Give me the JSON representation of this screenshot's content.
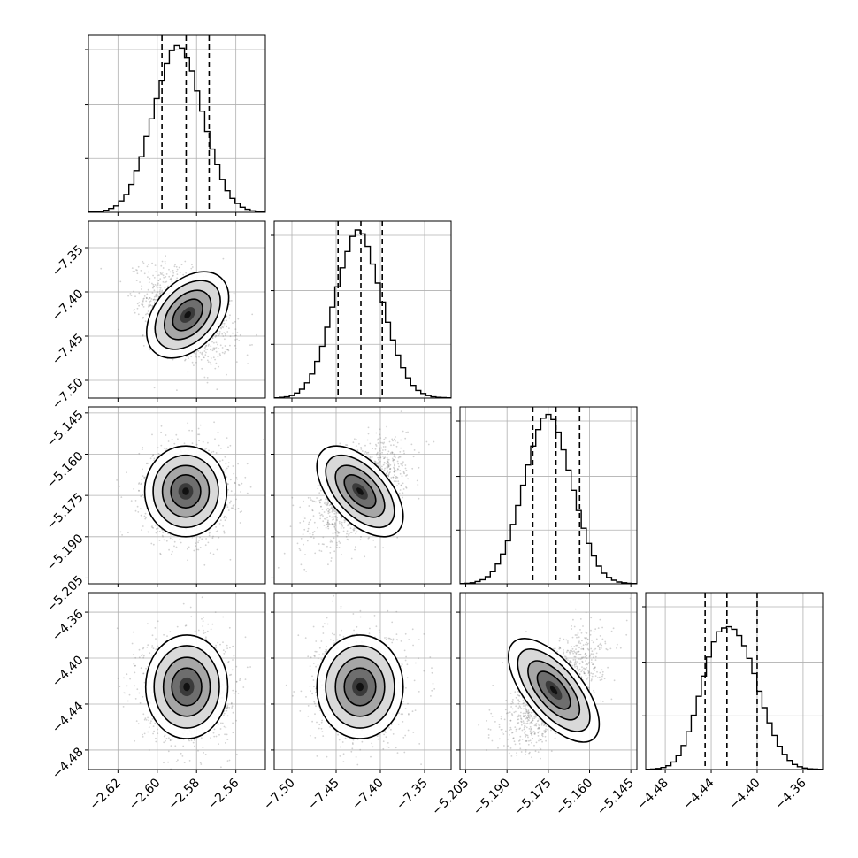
{
  "chart_data": {
    "type": "corner",
    "grid": true,
    "quantiles_shown": [
      0.16,
      0.5,
      0.84
    ],
    "colors": {
      "axes": "#000000",
      "grid": "#b0b0b0",
      "scatter": "#7f7f7f",
      "density": "#000000"
    },
    "parameters": [
      {
        "range": [
          -2.635,
          -2.545
        ],
        "ticks": [
          "-2.62",
          "-2.60",
          "-2.58",
          "-2.56"
        ],
        "tick_values": [
          -2.62,
          -2.6,
          -2.58,
          -2.56
        ],
        "mean": -2.5854,
        "sd": 0.0095,
        "quantiles": [
          -2.5976,
          -2.5853,
          -2.5736
        ]
      },
      {
        "range": [
          -7.52,
          -7.32
        ],
        "ticks": [
          "-7.50",
          "-7.45",
          "-7.40",
          "-7.35"
        ],
        "tick_values": [
          -7.5,
          -7.45,
          -7.4,
          -7.35
        ],
        "mean": -7.4228,
        "sd": 0.0222,
        "quantiles": [
          -7.4478,
          -7.422,
          -7.3978
        ]
      },
      {
        "range": [
          -5.2071,
          -5.1428
        ],
        "ticks": [
          "-5.205",
          "-5.190",
          "-5.175",
          "-5.160",
          "-5.145"
        ],
        "tick_values": [
          -5.205,
          -5.19,
          -5.175,
          -5.16,
          -5.145
        ],
        "mean": -5.1722,
        "sd": 0.0075,
        "quantiles": [
          -5.1806,
          -5.1722,
          -5.1636
        ]
      },
      {
        "range": [
          -4.497,
          -4.343
        ],
        "ticks": [
          "-4.48",
          "-4.44",
          "-4.40",
          "-4.36"
        ],
        "tick_values": [
          -4.48,
          -4.44,
          -4.4,
          -4.36
        ],
        "mean": -4.4228,
        "sd": 0.0205,
        "quantiles": [
          -4.4453,
          -4.4263,
          -4.4
        ]
      }
    ],
    "correlations": [
      {
        "pair": [
          0,
          1
        ],
        "rho": -0.4,
        "center": [
          -2.5845,
          -7.426
        ]
      },
      {
        "pair": [
          0,
          2
        ],
        "rho": 0.0,
        "center": [
          -2.5855,
          -5.1735
        ]
      },
      {
        "pair": [
          1,
          2
        ],
        "rho": 0.55,
        "center": [
          -7.423,
          -5.1735
        ]
      },
      {
        "pair": [
          0,
          3
        ],
        "rho": 0.0,
        "center": [
          -2.585,
          -4.425
        ]
      },
      {
        "pair": [
          1,
          3
        ],
        "rho": 0.0,
        "center": [
          -7.423,
          -4.425
        ]
      },
      {
        "pair": [
          2,
          3
        ],
        "rho": 0.65,
        "center": [
          -5.173,
          -4.428
        ]
      }
    ],
    "histograms": [
      [
        1,
        2,
        4,
        8,
        15,
        25,
        45,
        70,
        110,
        165,
        220,
        300,
        370,
        450,
        520,
        590,
        640,
        660,
        650,
        610,
        560,
        480,
        400,
        320,
        250,
        190,
        130,
        85,
        55,
        35,
        20,
        12,
        6,
        3,
        2
      ],
      [
        1,
        3,
        5,
        10,
        20,
        35,
        60,
        95,
        145,
        205,
        280,
        360,
        440,
        515,
        580,
        640,
        665,
        650,
        600,
        530,
        455,
        380,
        300,
        230,
        170,
        120,
        80,
        50,
        30,
        18,
        10,
        5,
        3,
        2,
        1
      ],
      [
        1,
        2,
        4,
        9,
        16,
        28,
        48,
        78,
        118,
        170,
        235,
        310,
        390,
        470,
        545,
        610,
        655,
        670,
        650,
        600,
        530,
        450,
        370,
        290,
        220,
        160,
        110,
        70,
        42,
        25,
        14,
        7,
        4,
        2,
        1
      ],
      [
        1,
        2,
        4,
        8,
        15,
        30,
        55,
        95,
        150,
        215,
        290,
        370,
        445,
        505,
        545,
        560,
        565,
        555,
        530,
        490,
        440,
        380,
        310,
        245,
        185,
        135,
        92,
        60,
        36,
        20,
        11,
        6,
        3,
        2,
        1
      ]
    ],
    "histogram_ymax": 700
  }
}
